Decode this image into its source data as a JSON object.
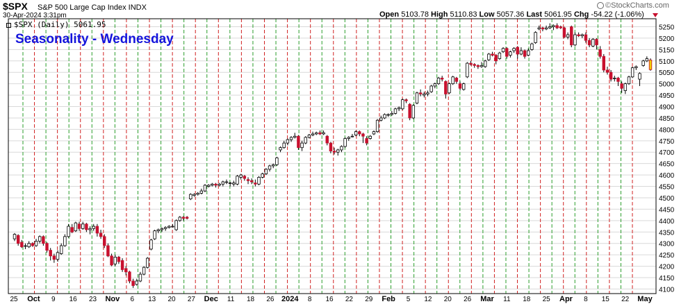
{
  "header": {
    "symbol": "$SPX",
    "name": "S&P 500 Large Cap Index INDX",
    "date": "30-Apr-2024 3:31pm",
    "open_label": "Open",
    "open": "5103.78",
    "high_label": "High",
    "high": "5110.83",
    "low_label": "Low",
    "low": "5057.36",
    "last_label": "Last",
    "last": "5061.95",
    "chg_label": "Chg",
    "chg": "-54.22 (-1.06%)",
    "brand": "©StockCharts.com"
  },
  "legend": "$SPX (Daily) 5061.95",
  "chart_data": {
    "type": "candlestick",
    "title": "Seasonality - Wednesday",
    "y_ticks": [
      4100,
      4150,
      4200,
      4250,
      4300,
      4350,
      4400,
      4450,
      4500,
      4550,
      4600,
      4650,
      4700,
      4750,
      4800,
      4850,
      4900,
      4950,
      5000,
      5050,
      5100,
      5150,
      5200,
      5250
    ],
    "ylim": [
      4080,
      5285
    ],
    "x_tick_labels": [
      {
        "label": "25"
      },
      {
        "label": "Oct",
        "bold": true
      },
      {
        "label": "9"
      },
      {
        "label": "16"
      },
      {
        "label": "23"
      },
      {
        "label": "Nov",
        "bold": true
      },
      {
        "label": "6"
      },
      {
        "label": "13"
      },
      {
        "label": "20"
      },
      {
        "label": "27"
      },
      {
        "label": "Dec",
        "bold": true
      },
      {
        "label": "11"
      },
      {
        "label": "18"
      },
      {
        "label": "26"
      },
      {
        "label": "2024",
        "bold": true
      },
      {
        "label": "8"
      },
      {
        "label": "16"
      },
      {
        "label": "22"
      },
      {
        "label": "29"
      },
      {
        "label": "Feb",
        "bold": true
      },
      {
        "label": "5"
      },
      {
        "label": "12"
      },
      {
        "label": "20"
      },
      {
        "label": "26"
      },
      {
        "label": "Mar",
        "bold": true
      },
      {
        "label": "11"
      },
      {
        "label": "18"
      },
      {
        "label": "25"
      },
      {
        "label": "Apr",
        "bold": true
      },
      {
        "label": "8"
      },
      {
        "label": "15"
      },
      {
        "label": "22"
      },
      {
        "label": "May",
        "bold": true
      }
    ],
    "wednesday_colors": [
      "green",
      "red"
    ],
    "candles": [
      {
        "o": 4320,
        "c": 4340,
        "h": 4345,
        "l": 4310
      },
      {
        "o": 4335,
        "c": 4300,
        "h": 4340,
        "l": 4290
      },
      {
        "o": 4305,
        "c": 4285,
        "h": 4315,
        "l": 4280
      },
      {
        "o": 4290,
        "c": 4290,
        "h": 4300,
        "l": 4275
      },
      {
        "o": 4285,
        "c": 4300,
        "h": 4310,
        "l": 4280
      },
      {
        "o": 4300,
        "c": 4290,
        "h": 4305,
        "l": 4285
      },
      {
        "o": 4290,
        "c": 4310,
        "h": 4320,
        "l": 4285
      },
      {
        "o": 4310,
        "c": 4330,
        "h": 4335,
        "l": 4300
      },
      {
        "o": 4330,
        "c": 4300,
        "h": 4335,
        "l": 4290
      },
      {
        "o": 4300,
        "c": 4270,
        "h": 4305,
        "l": 4260
      },
      {
        "o": 4270,
        "c": 4245,
        "h": 4280,
        "l": 4225
      },
      {
        "o": 4245,
        "c": 4230,
        "h": 4255,
        "l": 4215
      },
      {
        "o": 4230,
        "c": 4260,
        "h": 4270,
        "l": 4220
      },
      {
        "o": 4255,
        "c": 4290,
        "h": 4300,
        "l": 4250
      },
      {
        "o": 4290,
        "c": 4330,
        "h": 4340,
        "l": 4285
      },
      {
        "o": 4330,
        "c": 4375,
        "h": 4385,
        "l": 4325
      },
      {
        "o": 4370,
        "c": 4350,
        "h": 4385,
        "l": 4345
      },
      {
        "o": 4355,
        "c": 4390,
        "h": 4395,
        "l": 4350
      },
      {
        "o": 4385,
        "c": 4365,
        "h": 4395,
        "l": 4355
      },
      {
        "o": 4365,
        "c": 4385,
        "h": 4395,
        "l": 4360
      },
      {
        "o": 4385,
        "c": 4360,
        "h": 4390,
        "l": 4350
      },
      {
        "o": 4360,
        "c": 4365,
        "h": 4375,
        "l": 4340
      },
      {
        "o": 4365,
        "c": 4375,
        "h": 4385,
        "l": 4355
      },
      {
        "o": 4375,
        "c": 4345,
        "h": 4385,
        "l": 4330
      },
      {
        "o": 4345,
        "c": 4330,
        "h": 4360,
        "l": 4320
      },
      {
        "o": 4330,
        "c": 4290,
        "h": 4340,
        "l": 4280
      },
      {
        "o": 4290,
        "c": 4245,
        "h": 4300,
        "l": 4240
      },
      {
        "o": 4245,
        "c": 4205,
        "h": 4255,
        "l": 4200
      },
      {
        "o": 4210,
        "c": 4240,
        "h": 4250,
        "l": 4200
      },
      {
        "o": 4240,
        "c": 4220,
        "h": 4245,
        "l": 4210
      },
      {
        "o": 4225,
        "c": 4185,
        "h": 4235,
        "l": 4175
      },
      {
        "o": 4190,
        "c": 4175,
        "h": 4200,
        "l": 4160
      },
      {
        "o": 4175,
        "c": 4135,
        "h": 4180,
        "l": 4125
      },
      {
        "o": 4135,
        "c": 4115,
        "h": 4145,
        "l": 4105
      },
      {
        "o": 4120,
        "c": 4135,
        "h": 4145,
        "l": 4115
      },
      {
        "o": 4135,
        "c": 4165,
        "h": 4175,
        "l": 4130
      },
      {
        "o": 4165,
        "c": 4195,
        "h": 4200,
        "l": 4160
      },
      {
        "o": 4195,
        "c": 4235,
        "h": 4240,
        "l": 4190
      },
      {
        "o": 4275,
        "c": 4315,
        "h": 4320,
        "l": 4270
      },
      {
        "o": 4320,
        "c": 4355,
        "h": 4360,
        "l": 4315
      },
      {
        "o": 4355,
        "c": 4360,
        "h": 4365,
        "l": 4345
      },
      {
        "o": 4360,
        "c": 4365,
        "h": 4370,
        "l": 4350
      },
      {
        "o": 4365,
        "c": 4370,
        "h": 4375,
        "l": 4355
      },
      {
        "o": 4370,
        "c": 4375,
        "h": 4380,
        "l": 4365
      },
      {
        "o": 4375,
        "c": 4375,
        "h": 4385,
        "l": 4370
      },
      {
        "o": 4360,
        "c": 4400,
        "h": 4405,
        "l": 4355
      },
      {
        "o": 4400,
        "c": 4415,
        "h": 4420,
        "l": 4395
      },
      {
        "o": 4415,
        "c": 4410,
        "h": 4420,
        "l": 4400
      },
      {
        "o": 4415,
        "c": 4410,
        "h": 4420,
        "l": 4405
      },
      {
        "o": 4495,
        "c": 4515,
        "h": 4520,
        "l": 4490
      },
      {
        "o": 4510,
        "c": 4515,
        "h": 4520,
        "l": 4505
      },
      {
        "o": 4515,
        "c": 4520,
        "h": 4525,
        "l": 4510
      },
      {
        "o": 4520,
        "c": 4530,
        "h": 4540,
        "l": 4515
      },
      {
        "o": 4530,
        "c": 4555,
        "h": 4560,
        "l": 4525
      },
      {
        "o": 4550,
        "c": 4555,
        "h": 4560,
        "l": 4545
      },
      {
        "o": 4555,
        "c": 4560,
        "h": 4565,
        "l": 4550
      },
      {
        "o": 4560,
        "c": 4555,
        "h": 4565,
        "l": 4545
      },
      {
        "o": 4555,
        "c": 4560,
        "h": 4565,
        "l": 4550
      },
      {
        "o": 4560,
        "c": 4570,
        "h": 4575,
        "l": 4550
      },
      {
        "o": 4570,
        "c": 4570,
        "h": 4580,
        "l": 4560
      },
      {
        "o": 4565,
        "c": 4565,
        "h": 4570,
        "l": 4550
      },
      {
        "o": 4560,
        "c": 4565,
        "h": 4575,
        "l": 4550
      },
      {
        "o": 4560,
        "c": 4595,
        "h": 4600,
        "l": 4555
      },
      {
        "o": 4590,
        "c": 4600,
        "h": 4605,
        "l": 4580
      },
      {
        "o": 4595,
        "c": 4585,
        "h": 4600,
        "l": 4575
      },
      {
        "o": 4580,
        "c": 4575,
        "h": 4590,
        "l": 4560
      },
      {
        "o": 4575,
        "c": 4570,
        "h": 4585,
        "l": 4560
      },
      {
        "o": 4565,
        "c": 4560,
        "h": 4580,
        "l": 4550
      },
      {
        "o": 4560,
        "c": 4590,
        "h": 4595,
        "l": 4555
      },
      {
        "o": 4590,
        "c": 4605,
        "h": 4610,
        "l": 4585
      },
      {
        "o": 4605,
        "c": 4625,
        "h": 4630,
        "l": 4600
      },
      {
        "o": 4625,
        "c": 4640,
        "h": 4645,
        "l": 4615
      },
      {
        "o": 4640,
        "c": 4645,
        "h": 4650,
        "l": 4630
      },
      {
        "o": 4645,
        "c": 4675,
        "h": 4680,
        "l": 4640
      },
      {
        "o": 4710,
        "c": 4720,
        "h": 4725,
        "l": 4700
      },
      {
        "o": 4720,
        "c": 4740,
        "h": 4750,
        "l": 4715
      },
      {
        "o": 4740,
        "c": 4755,
        "h": 4760,
        "l": 4730
      },
      {
        "o": 4755,
        "c": 4765,
        "h": 4770,
        "l": 4745
      },
      {
        "o": 4765,
        "c": 4770,
        "h": 4785,
        "l": 4760
      },
      {
        "o": 4770,
        "c": 4720,
        "h": 4775,
        "l": 4710
      },
      {
        "o": 4720,
        "c": 4740,
        "h": 4750,
        "l": 4705
      },
      {
        "o": 4740,
        "c": 4765,
        "h": 4770,
        "l": 4735
      },
      {
        "o": 4765,
        "c": 4775,
        "h": 4780,
        "l": 4760
      },
      {
        "o": 4775,
        "c": 4780,
        "h": 4790,
        "l": 4770
      },
      {
        "o": 4780,
        "c": 4785,
        "h": 4790,
        "l": 4775
      },
      {
        "o": 4785,
        "c": 4780,
        "h": 4795,
        "l": 4775
      },
      {
        "o": 4780,
        "c": 4785,
        "h": 4795,
        "l": 4775
      },
      {
        "o": 4770,
        "c": 4740,
        "h": 4775,
        "l": 4730
      },
      {
        "o": 4740,
        "c": 4705,
        "h": 4745,
        "l": 4695
      },
      {
        "o": 4705,
        "c": 4700,
        "h": 4720,
        "l": 4690
      },
      {
        "o": 4700,
        "c": 4710,
        "h": 4715,
        "l": 4685
      },
      {
        "o": 4710,
        "c": 4725,
        "h": 4730,
        "l": 4700
      },
      {
        "o": 4725,
        "c": 4760,
        "h": 4765,
        "l": 4720
      },
      {
        "o": 4760,
        "c": 4765,
        "h": 4770,
        "l": 4750
      },
      {
        "o": 4770,
        "c": 4770,
        "h": 4780,
        "l": 4765
      },
      {
        "o": 4775,
        "c": 4790,
        "h": 4795,
        "l": 4770
      },
      {
        "o": 4790,
        "c": 4780,
        "h": 4795,
        "l": 4770
      },
      {
        "o": 4780,
        "c": 4770,
        "h": 4785,
        "l": 4740
      },
      {
        "o": 4760,
        "c": 4740,
        "h": 4770,
        "l": 4730
      },
      {
        "o": 4760,
        "c": 4770,
        "h": 4775,
        "l": 4755
      },
      {
        "o": 4780,
        "c": 4790,
        "h": 4795,
        "l": 4775
      },
      {
        "o": 4790,
        "c": 4840,
        "h": 4845,
        "l": 4785
      },
      {
        "o": 4840,
        "c": 4850,
        "h": 4860,
        "l": 4835
      },
      {
        "o": 4850,
        "c": 4865,
        "h": 4870,
        "l": 4845
      },
      {
        "o": 4865,
        "c": 4865,
        "h": 4870,
        "l": 4855
      },
      {
        "o": 4865,
        "c": 4870,
        "h": 4880,
        "l": 4860
      },
      {
        "o": 4870,
        "c": 4890,
        "h": 4895,
        "l": 4865
      },
      {
        "o": 4890,
        "c": 4895,
        "h": 4900,
        "l": 4880
      },
      {
        "o": 4890,
        "c": 4930,
        "h": 4935,
        "l": 4885
      },
      {
        "o": 4930,
        "c": 4925,
        "h": 4935,
        "l": 4915
      },
      {
        "o": 4910,
        "c": 4850,
        "h": 4915,
        "l": 4840
      },
      {
        "o": 4850,
        "c": 4905,
        "h": 4910,
        "l": 4845
      },
      {
        "o": 4915,
        "c": 4960,
        "h": 4965,
        "l": 4910
      },
      {
        "o": 4960,
        "c": 4955,
        "h": 4975,
        "l": 4945
      },
      {
        "o": 4950,
        "c": 4955,
        "h": 4965,
        "l": 4940
      },
      {
        "o": 4955,
        "c": 4960,
        "h": 4970,
        "l": 4945
      },
      {
        "o": 4965,
        "c": 4990,
        "h": 4995,
        "l": 4960
      },
      {
        "o": 4990,
        "c": 5000,
        "h": 5005,
        "l": 4980
      },
      {
        "o": 5000,
        "c": 5025,
        "h": 5030,
        "l": 4995
      },
      {
        "o": 5025,
        "c": 5020,
        "h": 5035,
        "l": 5010
      },
      {
        "o": 5010,
        "c": 4955,
        "h": 5015,
        "l": 4935
      },
      {
        "o": 4960,
        "c": 5000,
        "h": 5005,
        "l": 4955
      },
      {
        "o": 5000,
        "c": 5030,
        "h": 5035,
        "l": 4995
      },
      {
        "o": 5025,
        "c": 5010,
        "h": 5030,
        "l": 5000
      },
      {
        "o": 5000,
        "c": 4980,
        "h": 5010,
        "l": 4970
      },
      {
        "o": 4975,
        "c": 5000,
        "h": 5005,
        "l": 4970
      },
      {
        "o": 5030,
        "c": 5090,
        "h": 5095,
        "l": 5025
      },
      {
        "o": 5090,
        "c": 5085,
        "h": 5100,
        "l": 5080
      },
      {
        "o": 5085,
        "c": 5080,
        "h": 5090,
        "l": 5070
      },
      {
        "o": 5080,
        "c": 5075,
        "h": 5085,
        "l": 5065
      },
      {
        "o": 5075,
        "c": 5080,
        "h": 5095,
        "l": 5070
      },
      {
        "o": 5075,
        "c": 5100,
        "h": 5105,
        "l": 5070
      },
      {
        "o": 5105,
        "c": 5130,
        "h": 5135,
        "l": 5100
      },
      {
        "o": 5130,
        "c": 5125,
        "h": 5140,
        "l": 5120
      },
      {
        "o": 5125,
        "c": 5100,
        "h": 5130,
        "l": 5085
      },
      {
        "o": 5110,
        "c": 5135,
        "h": 5140,
        "l": 5105
      },
      {
        "o": 5140,
        "c": 5155,
        "h": 5160,
        "l": 5135
      },
      {
        "o": 5155,
        "c": 5120,
        "h": 5160,
        "l": 5110
      },
      {
        "o": 5125,
        "c": 5140,
        "h": 5145,
        "l": 5115
      },
      {
        "o": 5145,
        "c": 5155,
        "h": 5160,
        "l": 5135
      },
      {
        "o": 5160,
        "c": 5130,
        "h": 5165,
        "l": 5110
      },
      {
        "o": 5130,
        "c": 5145,
        "h": 5160,
        "l": 5125
      },
      {
        "o": 5145,
        "c": 5120,
        "h": 5150,
        "l": 5110
      },
      {
        "o": 5125,
        "c": 5145,
        "h": 5155,
        "l": 5120
      },
      {
        "o": 5150,
        "c": 5175,
        "h": 5180,
        "l": 5145
      },
      {
        "o": 5180,
        "c": 5225,
        "h": 5230,
        "l": 5175
      },
      {
        "o": 5240,
        "c": 5245,
        "h": 5255,
        "l": 5235
      },
      {
        "o": 5245,
        "c": 5240,
        "h": 5250,
        "l": 5230
      },
      {
        "o": 5240,
        "c": 5245,
        "h": 5255,
        "l": 5235
      },
      {
        "o": 5245,
        "c": 5250,
        "h": 5265,
        "l": 5240
      },
      {
        "o": 5250,
        "c": 5255,
        "h": 5260,
        "l": 5235
      },
      {
        "o": 5255,
        "c": 5245,
        "h": 5265,
        "l": 5240
      },
      {
        "o": 5250,
        "c": 5245,
        "h": 5255,
        "l": 5240
      },
      {
        "o": 5245,
        "c": 5205,
        "h": 5250,
        "l": 5200
      },
      {
        "o": 5205,
        "c": 5215,
        "h": 5225,
        "l": 5195
      },
      {
        "o": 5250,
        "c": 5170,
        "h": 5255,
        "l": 5160
      },
      {
        "o": 5170,
        "c": 5215,
        "h": 5225,
        "l": 5165
      },
      {
        "o": 5215,
        "c": 5210,
        "h": 5225,
        "l": 5205
      },
      {
        "o": 5210,
        "c": 5215,
        "h": 5220,
        "l": 5200
      },
      {
        "o": 5215,
        "c": 5190,
        "h": 5225,
        "l": 5180
      },
      {
        "o": 5190,
        "c": 5170,
        "h": 5200,
        "l": 5160
      },
      {
        "o": 5165,
        "c": 5195,
        "h": 5200,
        "l": 5160
      },
      {
        "o": 5195,
        "c": 5170,
        "h": 5200,
        "l": 5150
      },
      {
        "o": 5150,
        "c": 5120,
        "h": 5165,
        "l": 5110
      },
      {
        "o": 5120,
        "c": 5060,
        "h": 5130,
        "l": 5050
      },
      {
        "o": 5060,
        "c": 5050,
        "h": 5075,
        "l": 5040
      },
      {
        "o": 5050,
        "c": 5020,
        "h": 5060,
        "l": 5010
      },
      {
        "o": 5025,
        "c": 5025,
        "h": 5035,
        "l": 5010
      },
      {
        "o": 5025,
        "c": 5010,
        "h": 5030,
        "l": 4990
      },
      {
        "o": 5000,
        "c": 4980,
        "h": 5010,
        "l": 4960
      },
      {
        "o": 4970,
        "c": 5000,
        "h": 5005,
        "l": 4955
      },
      {
        "o": 5000,
        "c": 5030,
        "h": 5035,
        "l": 4995
      },
      {
        "o": 5030,
        "c": 5070,
        "h": 5075,
        "l": 5025
      },
      {
        "o": 5070,
        "c": 5075,
        "h": 5080,
        "l": 5060
      },
      {
        "o": 5020,
        "c": 5045,
        "h": 5050,
        "l": 4990
      },
      {
        "o": 5080,
        "c": 5100,
        "h": 5105,
        "l": 5075
      },
      {
        "o": 5100,
        "c": 5110,
        "h": 5120,
        "l": 5095
      },
      {
        "o": 5104,
        "c": 5062,
        "h": 5111,
        "l": 5057
      }
    ]
  },
  "colors": {
    "up_fill": "#ffffff",
    "down_fill": "#c8102e",
    "outline": "#000000",
    "last_fill": "#f0d000",
    "wed_green": "#2a9d2a",
    "wed_red": "#d02020",
    "grid": "#d9d9d9"
  }
}
